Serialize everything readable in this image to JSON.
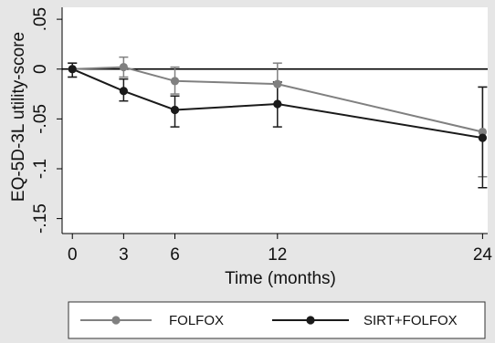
{
  "colors": {
    "background": "#e6e6e6",
    "plot_background": "#ffffff",
    "folfox": "#808080",
    "sirt_folfox": "#1a1a1a",
    "reference_line": "#000000"
  },
  "chart_data": {
    "type": "line",
    "title": "",
    "xlabel": "Time (months)",
    "ylabel": "EQ-5D-3L utility-score",
    "x_ticks": [
      0,
      3,
      6,
      12,
      24
    ],
    "x_tick_labels": [
      "0",
      "3",
      "6",
      "12",
      "24"
    ],
    "y_ticks": [
      0.05,
      0,
      -0.05,
      -0.1,
      -0.15
    ],
    "y_tick_labels": [
      ".05",
      "0",
      "-.05",
      "-.1",
      "-.15"
    ],
    "xlim": [
      -0.6,
      24.3
    ],
    "ylim": [
      -0.165,
      0.062
    ],
    "reference_line_y": 0,
    "grid": false,
    "legend_position": "bottom",
    "series": [
      {
        "name": "FOLFOX",
        "x": [
          0,
          3,
          6,
          12,
          24
        ],
        "y": [
          0.0,
          0.002,
          -0.012,
          -0.015,
          -0.063
        ],
        "ci_low": [
          -0.008,
          -0.008,
          -0.025,
          -0.035,
          -0.108
        ],
        "ci_high": [
          0.006,
          0.012,
          0.002,
          0.006,
          -0.018
        ]
      },
      {
        "name": "SIRT+FOLFOX",
        "x": [
          0,
          3,
          6,
          12,
          24
        ],
        "y": [
          0.0,
          -0.022,
          -0.041,
          -0.035,
          -0.069
        ],
        "ci_low": [
          -0.008,
          -0.032,
          -0.058,
          -0.058,
          -0.119
        ],
        "ci_high": [
          0.006,
          -0.01,
          -0.027,
          -0.013,
          -0.018
        ]
      }
    ]
  }
}
